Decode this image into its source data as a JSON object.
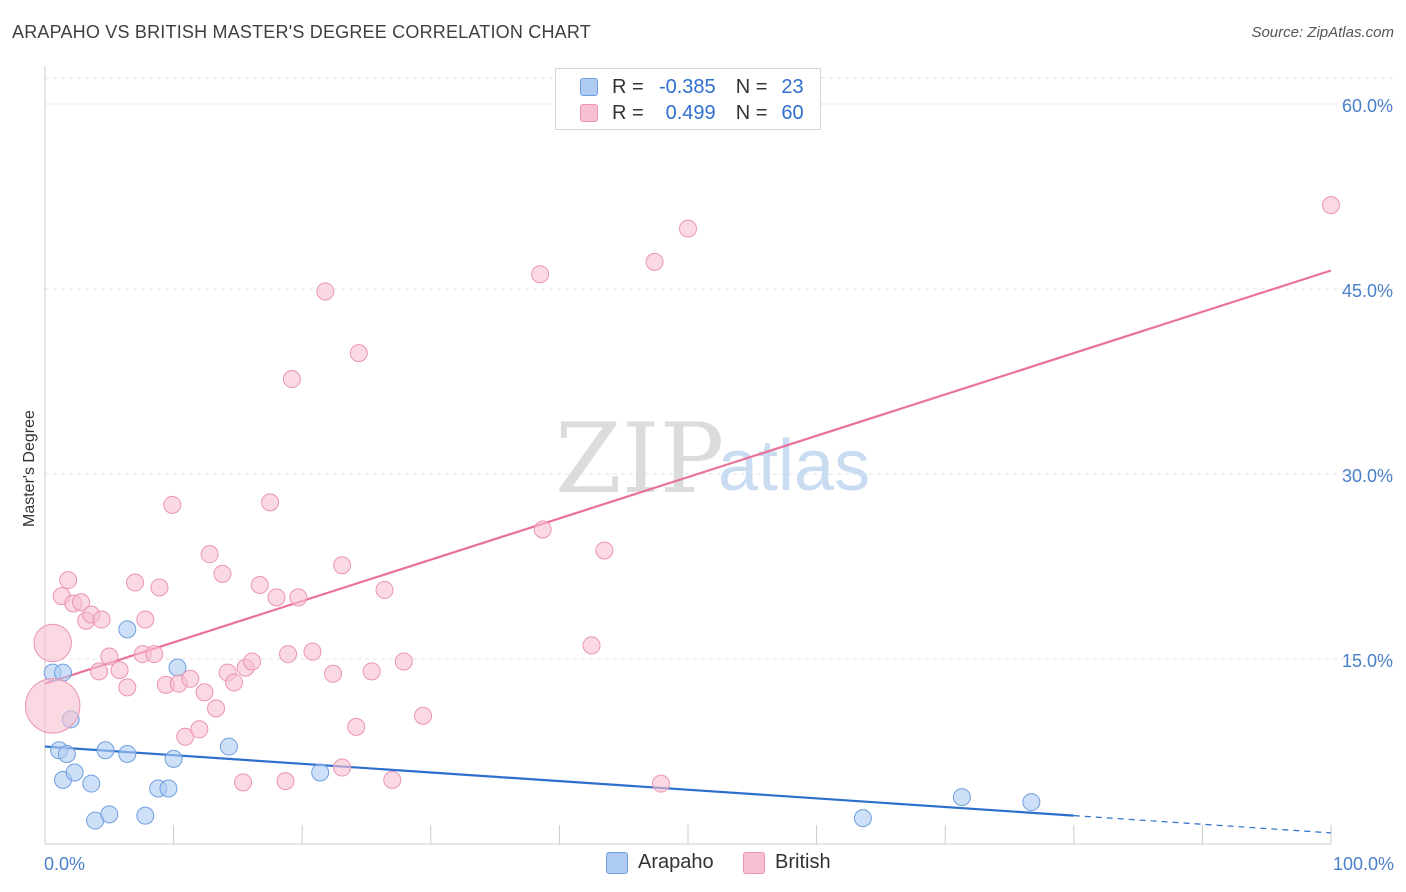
{
  "title": "ARAPAHO VS BRITISH MASTER'S DEGREE CORRELATION CHART",
  "source": "Source: ZipAtlas.com",
  "colors": {
    "arapaho_fill": "#aecbf1",
    "arapaho_stroke": "#6f9ee0",
    "arapaho_line": "#2d6fcc",
    "british_fill": "#f7bfd1",
    "british_stroke": "#ec94b2",
    "british_line": "#e8729a",
    "grid": "#e3e3e3"
  },
  "legend": {
    "rows": [
      {
        "r_label": "R =",
        "r_value": "-0.385",
        "n_label": "N =",
        "n_value": "23"
      },
      {
        "r_label": "R =",
        "r_value": "0.499",
        "n_label": "N =",
        "n_value": "60"
      }
    ]
  },
  "watermark": {
    "zip": "ZIP",
    "atlas": "atlas"
  },
  "chart_data": {
    "type": "scatter",
    "title": "ARAPAHO VS BRITISH MASTER'S DEGREE CORRELATION CHART",
    "xlabel": "",
    "ylabel": "Master's Degree",
    "xlim": [
      0,
      100
    ],
    "ylim": [
      0,
      63
    ],
    "x_tick_labels": [
      "0.0%",
      "100.0%"
    ],
    "y_ticks": [
      15,
      30,
      45,
      60
    ],
    "y_tick_labels": [
      "15.0%",
      "30.0%",
      "45.0%",
      "60.0%"
    ],
    "grid": true,
    "legend_position": "top-center",
    "series": [
      {
        "name": "Arapaho",
        "points": [
          [
            0.6,
            13.9,
            1
          ],
          [
            1.1,
            7.6,
            1
          ],
          [
            1.4,
            13.9,
            1
          ],
          [
            1.4,
            5.2,
            1
          ],
          [
            1.7,
            7.3,
            1
          ],
          [
            2.0,
            10.1,
            1
          ],
          [
            2.3,
            5.8,
            1
          ],
          [
            3.6,
            4.9,
            1
          ],
          [
            3.9,
            1.9,
            1
          ],
          [
            5.0,
            2.4,
            1
          ],
          [
            4.7,
            7.6,
            1
          ],
          [
            6.4,
            17.4,
            1
          ],
          [
            6.4,
            7.3,
            1
          ],
          [
            7.8,
            2.3,
            1
          ],
          [
            8.8,
            4.5,
            1
          ],
          [
            9.6,
            4.5,
            1
          ],
          [
            10.0,
            6.9,
            1
          ],
          [
            10.3,
            14.3,
            1
          ],
          [
            14.3,
            7.9,
            1
          ],
          [
            21.4,
            5.8,
            1
          ],
          [
            71.3,
            3.8,
            1
          ],
          [
            76.7,
            3.4,
            1
          ],
          [
            63.6,
            2.1,
            1
          ]
        ],
        "trend": {
          "x": [
            0,
            80
          ],
          "y": [
            7.9,
            2.3
          ]
        },
        "trend_extension": {
          "x": [
            80,
            100
          ],
          "y": [
            2.3,
            0.9
          ]
        }
      },
      {
        "name": "British",
        "points": [
          [
            0.6,
            16.3,
            2.2
          ],
          [
            0.6,
            11.2,
            3.2
          ],
          [
            1.3,
            20.1,
            1
          ],
          [
            1.8,
            21.4,
            1
          ],
          [
            2.2,
            19.5,
            1
          ],
          [
            2.8,
            19.6,
            1
          ],
          [
            3.2,
            18.1,
            1
          ],
          [
            3.6,
            18.6,
            1
          ],
          [
            4.4,
            18.2,
            1
          ],
          [
            4.2,
            14.0,
            1
          ],
          [
            5.0,
            15.2,
            1
          ],
          [
            5.8,
            14.1,
            1
          ],
          [
            6.4,
            12.7,
            1
          ],
          [
            7.0,
            21.2,
            1
          ],
          [
            7.6,
            15.4,
            1
          ],
          [
            7.8,
            18.2,
            1
          ],
          [
            8.5,
            15.4,
            1
          ],
          [
            8.9,
            20.8,
            1
          ],
          [
            9.4,
            12.9,
            1
          ],
          [
            9.9,
            27.5,
            1
          ],
          [
            10.4,
            13.0,
            1
          ],
          [
            11.3,
            13.4,
            1
          ],
          [
            10.9,
            8.7,
            1
          ],
          [
            12.0,
            9.3,
            1
          ],
          [
            12.4,
            12.3,
            1
          ],
          [
            12.8,
            23.5,
            1
          ],
          [
            13.3,
            11.0,
            1
          ],
          [
            13.8,
            21.9,
            1
          ],
          [
            14.2,
            13.9,
            1
          ],
          [
            14.7,
            13.1,
            1
          ],
          [
            15.6,
            14.3,
            1
          ],
          [
            16.1,
            14.8,
            1
          ],
          [
            16.7,
            21.0,
            1
          ],
          [
            17.5,
            27.7,
            1
          ],
          [
            18.0,
            20.0,
            1
          ],
          [
            18.9,
            15.4,
            1
          ],
          [
            19.2,
            37.7,
            1
          ],
          [
            19.7,
            20.0,
            1
          ],
          [
            20.8,
            15.6,
            1
          ],
          [
            21.8,
            44.8,
            1
          ],
          [
            22.4,
            13.8,
            1
          ],
          [
            23.1,
            6.2,
            1
          ],
          [
            23.1,
            22.6,
            1
          ],
          [
            24.2,
            9.5,
            1
          ],
          [
            24.4,
            39.8,
            1
          ],
          [
            25.4,
            14.0,
            1
          ],
          [
            26.4,
            20.6,
            1
          ],
          [
            27.0,
            5.2,
            1
          ],
          [
            27.9,
            14.8,
            1
          ],
          [
            29.4,
            10.4,
            1
          ],
          [
            18.7,
            5.1,
            1
          ],
          [
            15.4,
            5.0,
            1
          ],
          [
            38.5,
            46.2,
            1
          ],
          [
            38.7,
            25.5,
            1
          ],
          [
            42.5,
            16.1,
            1
          ],
          [
            43.5,
            23.8,
            1
          ],
          [
            47.4,
            47.2,
            1
          ],
          [
            47.9,
            4.9,
            1
          ],
          [
            50.0,
            49.9,
            1
          ],
          [
            100.0,
            51.8,
            1
          ]
        ],
        "trend": {
          "x": [
            0,
            100
          ],
          "y": [
            13.0,
            46.5
          ]
        }
      }
    ]
  },
  "bottom_legend": [
    {
      "name": "Arapaho"
    },
    {
      "name": "British"
    }
  ]
}
